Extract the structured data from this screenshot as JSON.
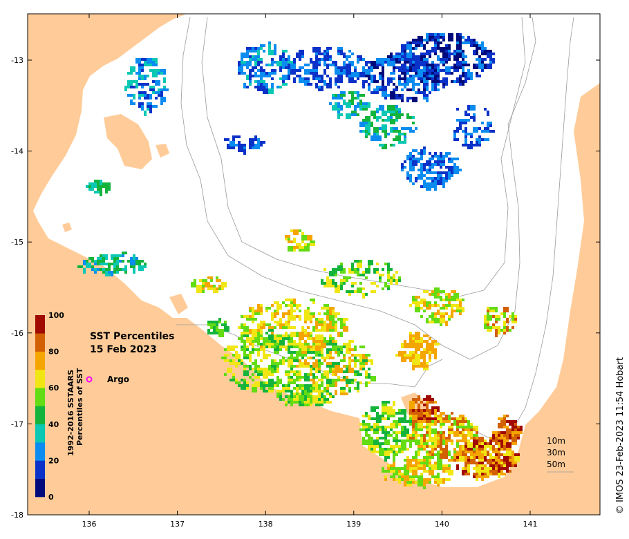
{
  "map": {
    "title_line1": "SST Percentiles",
    "title_line2": "15 Feb 2023",
    "credit": "© IMOS 23-Feb-2023 11:54 Hobart",
    "land_color": "#ffcc99",
    "sea_color": "#ffffff",
    "lon_ticks": [
      {
        "value": 136,
        "label": "136"
      },
      {
        "value": 137,
        "label": "137"
      },
      {
        "value": 138,
        "label": "138"
      },
      {
        "value": 139,
        "label": "139"
      },
      {
        "value": 140,
        "label": "140"
      },
      {
        "value": 141,
        "label": "141"
      }
    ],
    "lat_ticks": [
      {
        "value": -13,
        "label": "-13"
      },
      {
        "value": -14,
        "label": "-14"
      },
      {
        "value": -15,
        "label": "-15"
      },
      {
        "value": -16,
        "label": "-16"
      },
      {
        "value": -17,
        "label": "-17"
      },
      {
        "value": -18,
        "label": "-18"
      }
    ],
    "colorbar": {
      "label_line1": "1992-2016 SSTAARS",
      "label_line2": "Percentiles of SST",
      "ticks": [
        "0",
        "20",
        "40",
        "60",
        "80",
        "100"
      ],
      "colors": [
        "#000a7a",
        "#0a32c8",
        "#0a8cf0",
        "#0ac8b4",
        "#14b43c",
        "#64dc14",
        "#f0e614",
        "#f5a500",
        "#d25f00",
        "#a00a00"
      ]
    },
    "legend": {
      "argo_label": "Argo",
      "argo_color": "#ff00ff"
    },
    "depth_contours": [
      "10m",
      "30m",
      "50m"
    ]
  }
}
